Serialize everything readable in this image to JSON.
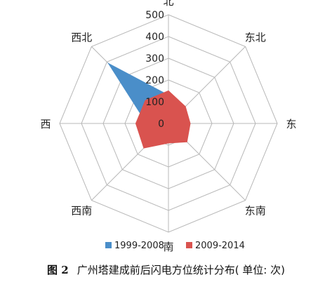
{
  "chart_data": {
    "type": "radar",
    "directions": [
      "北",
      "东北",
      "东",
      "东南",
      "南",
      "西南",
      "西",
      "西北"
    ],
    "rlim": [
      0,
      500
    ],
    "ticks": [
      "0",
      "100",
      "200",
      "300",
      "400",
      "500"
    ],
    "grid": true,
    "legend_position": "bottom",
    "series": [
      {
        "name": "1999-2008",
        "color": "#4a8ec9",
        "values": [
          130,
          80,
          80,
          90,
          70,
          100,
          100,
          390
        ]
      },
      {
        "name": "2009-2014",
        "color": "#d9534f",
        "values": [
          150,
          110,
          100,
          120,
          90,
          160,
          150,
          150
        ]
      }
    ]
  },
  "caption": {
    "figure_no": "图 2",
    "text": "广州塔建成前后闪电方位统计分布( 单位: 次)"
  }
}
